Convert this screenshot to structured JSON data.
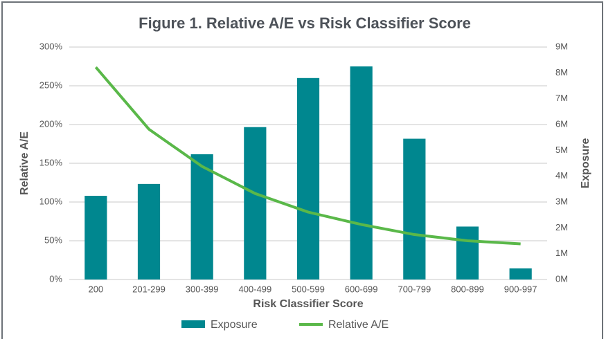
{
  "chart_data": {
    "type": "bar_line",
    "title": "Figure 1. Relative A/E vs Risk Classifier Score",
    "x_label": "Risk Classifier Score",
    "y_label": "Relative A/E",
    "y2_label": "Exposure",
    "categories": [
      "200",
      "201-299",
      "300-399",
      "400-499",
      "500-599",
      "600-699",
      "700-799",
      "800-899",
      "900-997"
    ],
    "series": [
      {
        "name": "Exposure",
        "type": "bar",
        "axis": "y2",
        "color": "#00878f",
        "values": [
          3240000,
          3700000,
          4850000,
          5900000,
          7800000,
          8250000,
          5450000,
          2050000,
          430000
        ]
      },
      {
        "name": "Relative A/E",
        "type": "line",
        "axis": "y",
        "color": "#5ab849",
        "values": [
          274,
          194,
          146,
          111,
          87,
          71,
          58,
          50,
          46
        ]
      }
    ],
    "ylim": [
      0,
      300
    ],
    "yticks": [
      {
        "value": 0,
        "label": "0%"
      },
      {
        "value": 50,
        "label": "50%"
      },
      {
        "value": 100,
        "label": "100%"
      },
      {
        "value": 150,
        "label": "150%"
      },
      {
        "value": 200,
        "label": "200%"
      },
      {
        "value": 250,
        "label": "250%"
      },
      {
        "value": 300,
        "label": "300%"
      }
    ],
    "y2lim": [
      0,
      9000000
    ],
    "y2ticks": [
      {
        "value": 0,
        "label": "0M"
      },
      {
        "value": 1000000,
        "label": "1M"
      },
      {
        "value": 2000000,
        "label": "2M"
      },
      {
        "value": 3000000,
        "label": "3M"
      },
      {
        "value": 4000000,
        "label": "4M"
      },
      {
        "value": 5000000,
        "label": "5M"
      },
      {
        "value": 6000000,
        "label": "6M"
      },
      {
        "value": 7000000,
        "label": "7M"
      },
      {
        "value": 8000000,
        "label": "8M"
      },
      {
        "value": 9000000,
        "label": "9M"
      }
    ],
    "grid": true,
    "legend": "bottom"
  }
}
